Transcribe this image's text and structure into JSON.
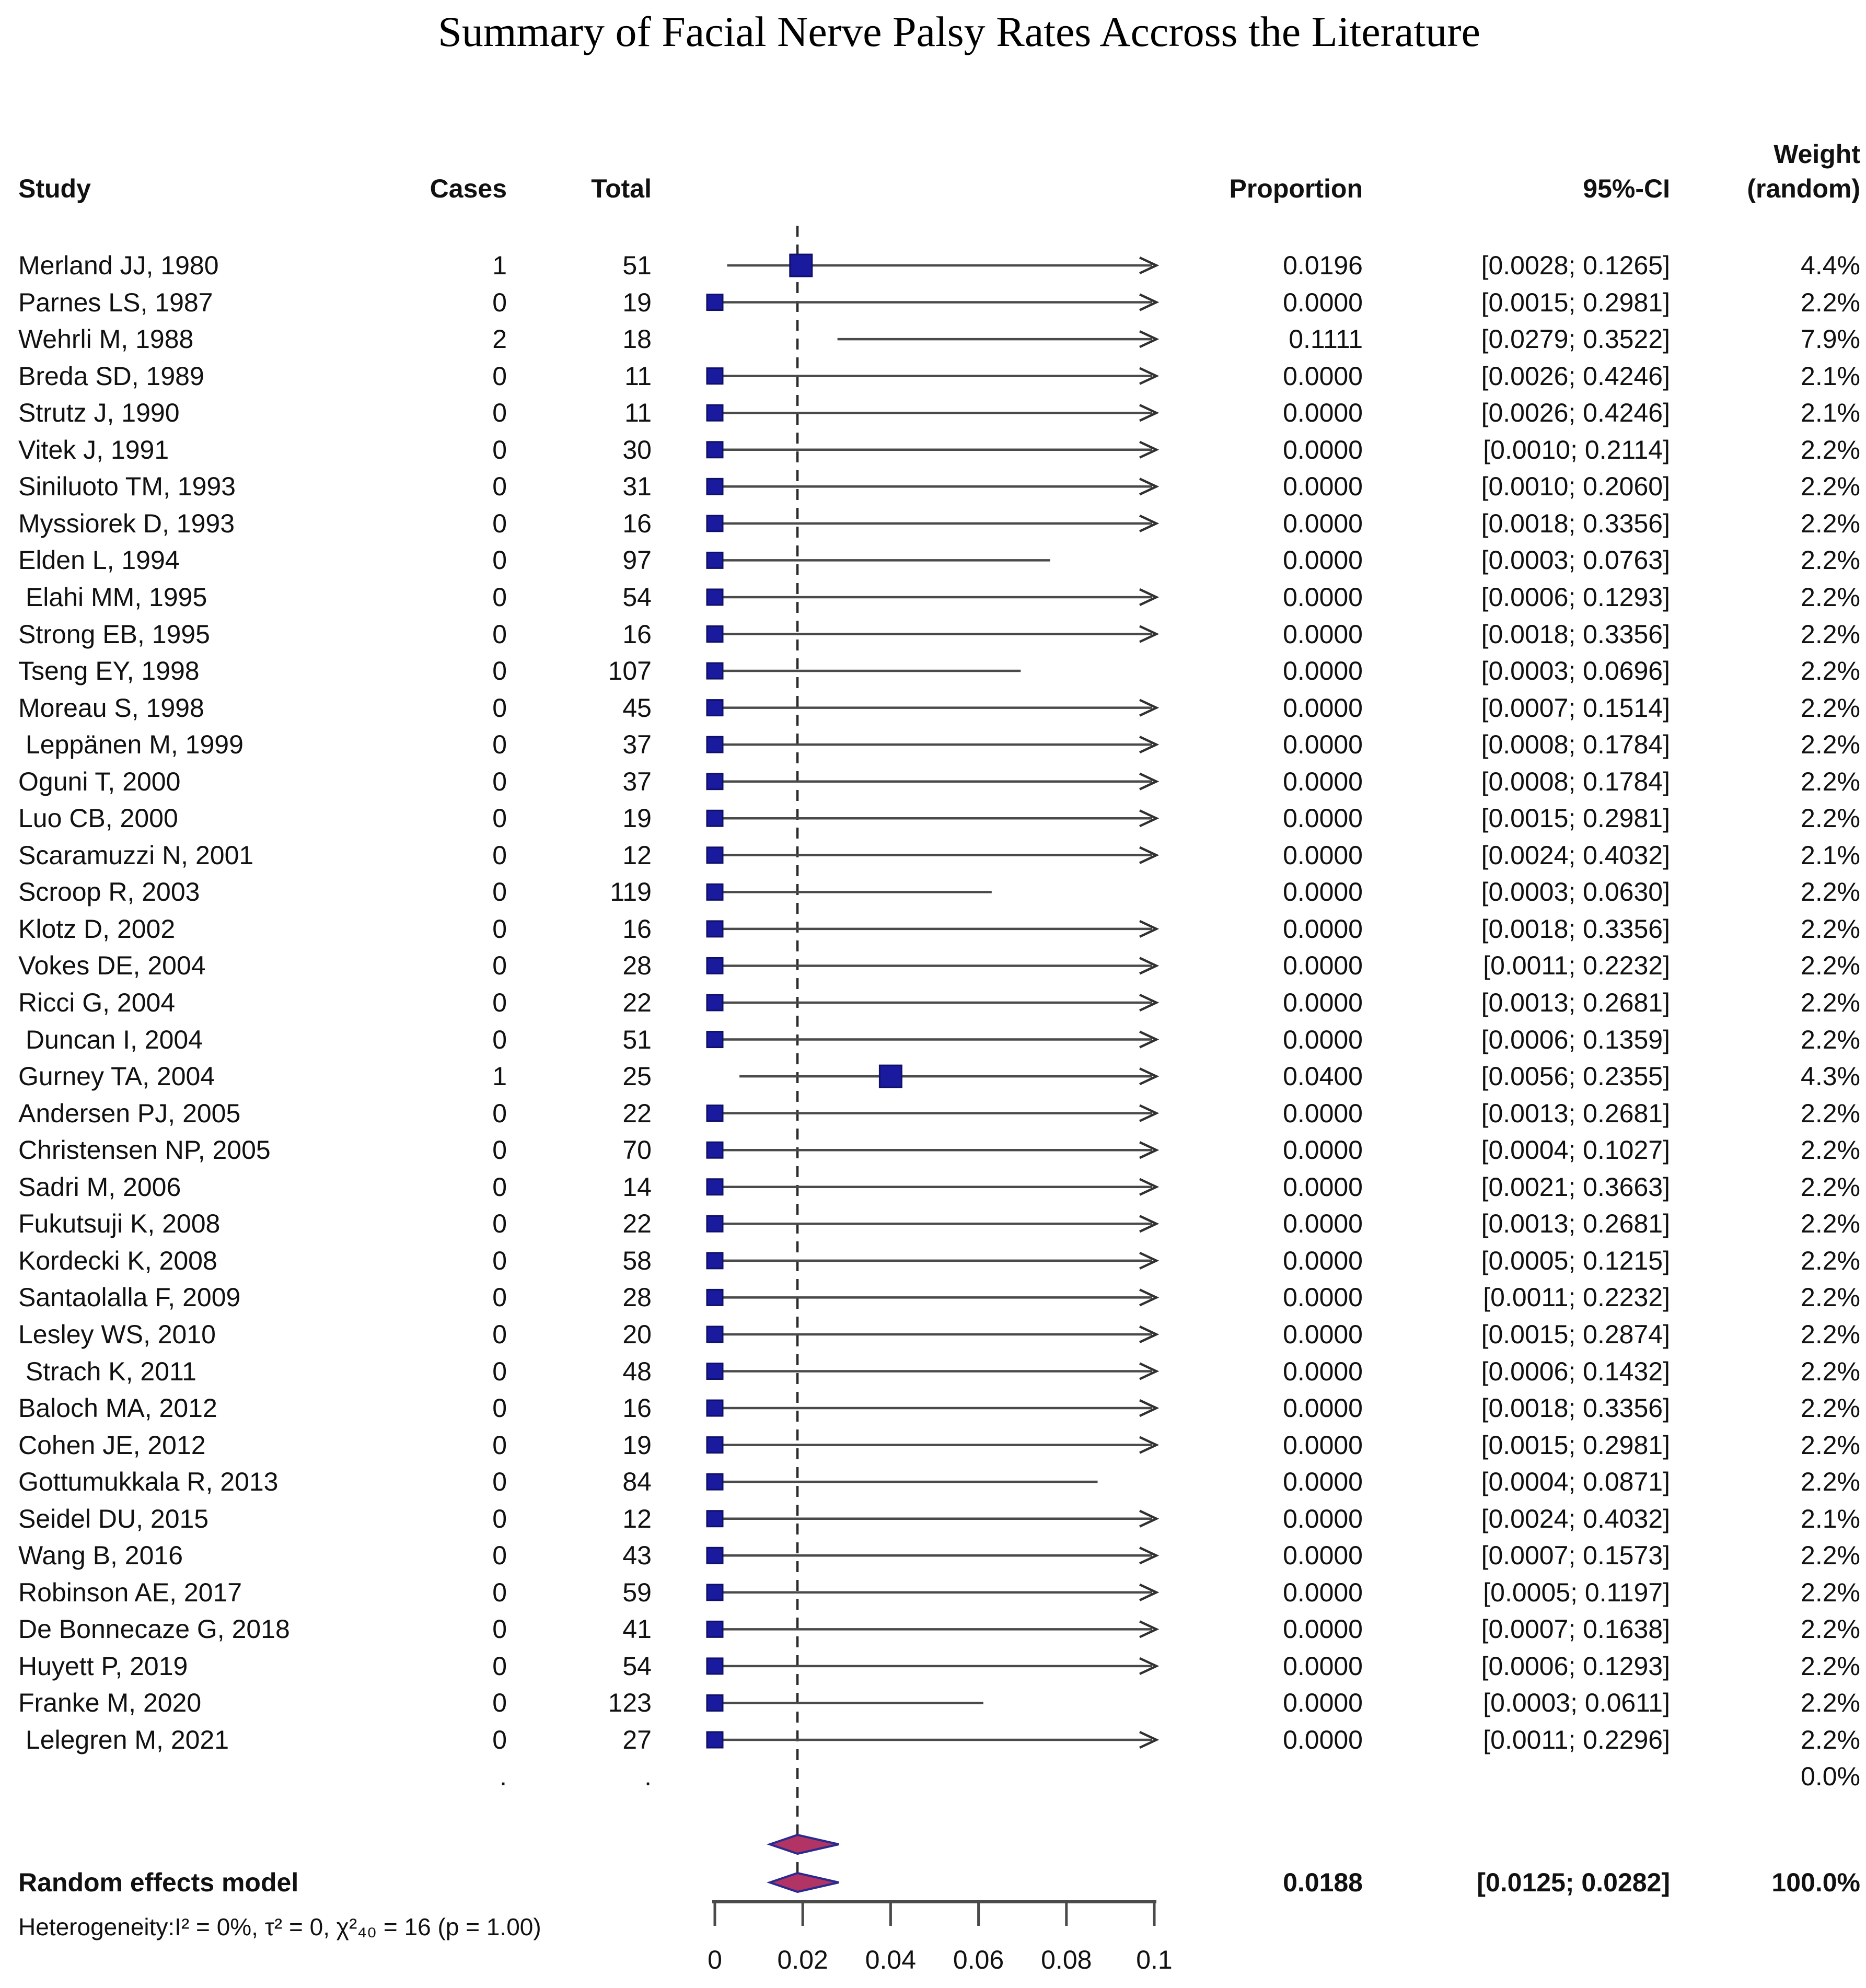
{
  "title": "Summary of Facial Nerve Palsy Rates Accross the Literature",
  "header": {
    "study": "Study",
    "cases": "Cases",
    "total": "Total",
    "proportion": "Proportion",
    "ci": "95%-CI",
    "weight_top": "Weight",
    "weight_bottom": "(random)"
  },
  "gap_row": {
    "cases_dot": ".",
    "total_dot": ".",
    "weight": "0.0%"
  },
  "summary_row": {
    "label": "Random effects model",
    "proportion": "0.0188",
    "ci": "[0.0125; 0.0282]",
    "weight": "100.0%"
  },
  "heterogeneity": "Heterogeneity:I² = 0%, τ² = 0, χ²₄₀ = 16 (p = 1.00)",
  "colors": {
    "square_fill": "#1a1a9e",
    "square_stroke": "#10106b",
    "diamond_fill": "#b13464",
    "diamond_stroke": "#2a2a90",
    "ci_line": "#4a4a4a",
    "arrow": "#303030",
    "dashed_line": "#2b2b2b",
    "axis": "#4a4a4a",
    "text": "#111111"
  },
  "chart_data": {
    "type": "forest",
    "title": "Summary of Facial Nerve Palsy Rates Accross the Literature",
    "xlabel": "Proportion",
    "xlim": [
      0,
      0.1
    ],
    "x_ticks": [
      0,
      0.02,
      0.04,
      0.06,
      0.08,
      0.1
    ],
    "x_tick_labels": [
      "0",
      "0.02",
      "0.04",
      "0.06",
      "0.08",
      "0.1"
    ],
    "dashed_at": 0.0188,
    "legend_position": "none",
    "grid": false,
    "studies": [
      {
        "study": "Merland JJ, 1980",
        "cases": "1",
        "total": "51",
        "proportion": "0.0196",
        "ci": "[0.0028; 0.1265]",
        "weight": "4.4%",
        "p": 0.0196,
        "lo": 0.0028,
        "hi": 0.1265
      },
      {
        "study": "Parnes LS, 1987",
        "cases": "0",
        "total": "19",
        "proportion": "0.0000",
        "ci": "[0.0015; 0.2981]",
        "weight": "2.2%",
        "p": 0.0,
        "lo": 0.0015,
        "hi": 0.2981
      },
      {
        "study": "Wehrli M, 1988",
        "cases": "2",
        "total": "18",
        "proportion": "0.1111",
        "ci": "[0.0279; 0.3522]",
        "weight": "7.9%",
        "p": 0.1111,
        "lo": 0.0279,
        "hi": 0.3522
      },
      {
        "study": "Breda SD, 1989",
        "cases": "0",
        "total": "11",
        "proportion": "0.0000",
        "ci": "[0.0026; 0.4246]",
        "weight": "2.1%",
        "p": 0.0,
        "lo": 0.0026,
        "hi": 0.4246
      },
      {
        "study": "Strutz J, 1990",
        "cases": "0",
        "total": "11",
        "proportion": "0.0000",
        "ci": "[0.0026; 0.4246]",
        "weight": "2.1%",
        "p": 0.0,
        "lo": 0.0026,
        "hi": 0.4246
      },
      {
        "study": "Vitek J, 1991",
        "cases": "0",
        "total": "30",
        "proportion": "0.0000",
        "ci": "[0.0010; 0.2114]",
        "weight": "2.2%",
        "p": 0.0,
        "lo": 0.001,
        "hi": 0.2114
      },
      {
        "study": "Siniluoto TM, 1993",
        "cases": "0",
        "total": "31",
        "proportion": "0.0000",
        "ci": "[0.0010; 0.2060]",
        "weight": "2.2%",
        "p": 0.0,
        "lo": 0.001,
        "hi": 0.206
      },
      {
        "study": "Myssiorek D, 1993",
        "cases": "0",
        "total": "16",
        "proportion": "0.0000",
        "ci": "[0.0018; 0.3356]",
        "weight": "2.2%",
        "p": 0.0,
        "lo": 0.0018,
        "hi": 0.3356
      },
      {
        "study": "Elden L, 1994",
        "cases": "0",
        "total": "97",
        "proportion": "0.0000",
        "ci": "[0.0003; 0.0763]",
        "weight": "2.2%",
        "p": 0.0,
        "lo": 0.0003,
        "hi": 0.0763
      },
      {
        "study": " Elahi MM, 1995",
        "cases": "0",
        "total": "54",
        "proportion": "0.0000",
        "ci": "[0.0006; 0.1293]",
        "weight": "2.2%",
        "p": 0.0,
        "lo": 0.0006,
        "hi": 0.1293
      },
      {
        "study": "Strong EB, 1995",
        "cases": "0",
        "total": "16",
        "proportion": "0.0000",
        "ci": "[0.0018; 0.3356]",
        "weight": "2.2%",
        "p": 0.0,
        "lo": 0.0018,
        "hi": 0.3356
      },
      {
        "study": "Tseng EY, 1998",
        "cases": "0",
        "total": "107",
        "proportion": "0.0000",
        "ci": "[0.0003; 0.0696]",
        "weight": "2.2%",
        "p": 0.0,
        "lo": 0.0003,
        "hi": 0.0696
      },
      {
        "study": "Moreau S, 1998",
        "cases": "0",
        "total": "45",
        "proportion": "0.0000",
        "ci": "[0.0007; 0.1514]",
        "weight": "2.2%",
        "p": 0.0,
        "lo": 0.0007,
        "hi": 0.1514
      },
      {
        "study": " Leppänen M, 1999",
        "cases": "0",
        "total": "37",
        "proportion": "0.0000",
        "ci": "[0.0008; 0.1784]",
        "weight": "2.2%",
        "p": 0.0,
        "lo": 0.0008,
        "hi": 0.1784
      },
      {
        "study": "Oguni T, 2000",
        "cases": "0",
        "total": "37",
        "proportion": "0.0000",
        "ci": "[0.0008; 0.1784]",
        "weight": "2.2%",
        "p": 0.0,
        "lo": 0.0008,
        "hi": 0.1784
      },
      {
        "study": "Luo CB, 2000",
        "cases": "0",
        "total": "19",
        "proportion": "0.0000",
        "ci": "[0.0015; 0.2981]",
        "weight": "2.2%",
        "p": 0.0,
        "lo": 0.0015,
        "hi": 0.2981
      },
      {
        "study": "Scaramuzzi N, 2001",
        "cases": "0",
        "total": "12",
        "proportion": "0.0000",
        "ci": "[0.0024; 0.4032]",
        "weight": "2.1%",
        "p": 0.0,
        "lo": 0.0024,
        "hi": 0.4032
      },
      {
        "study": "Scroop R, 2003",
        "cases": "0",
        "total": "119",
        "proportion": "0.0000",
        "ci": "[0.0003; 0.0630]",
        "weight": "2.2%",
        "p": 0.0,
        "lo": 0.0003,
        "hi": 0.063
      },
      {
        "study": "Klotz D, 2002",
        "cases": "0",
        "total": "16",
        "proportion": "0.0000",
        "ci": "[0.0018; 0.3356]",
        "weight": "2.2%",
        "p": 0.0,
        "lo": 0.0018,
        "hi": 0.3356
      },
      {
        "study": "Vokes DE, 2004",
        "cases": "0",
        "total": "28",
        "proportion": "0.0000",
        "ci": "[0.0011; 0.2232]",
        "weight": "2.2%",
        "p": 0.0,
        "lo": 0.0011,
        "hi": 0.2232
      },
      {
        "study": "Ricci G, 2004",
        "cases": "0",
        "total": "22",
        "proportion": "0.0000",
        "ci": "[0.0013; 0.2681]",
        "weight": "2.2%",
        "p": 0.0,
        "lo": 0.0013,
        "hi": 0.2681
      },
      {
        "study": " Duncan I, 2004",
        "cases": "0",
        "total": "51",
        "proportion": "0.0000",
        "ci": "[0.0006; 0.1359]",
        "weight": "2.2%",
        "p": 0.0,
        "lo": 0.0006,
        "hi": 0.1359
      },
      {
        "study": "Gurney TA, 2004",
        "cases": "1",
        "total": "25",
        "proportion": "0.0400",
        "ci": "[0.0056; 0.2355]",
        "weight": "4.3%",
        "p": 0.04,
        "lo": 0.0056,
        "hi": 0.2355
      },
      {
        "study": "Andersen PJ, 2005",
        "cases": "0",
        "total": "22",
        "proportion": "0.0000",
        "ci": "[0.0013; 0.2681]",
        "weight": "2.2%",
        "p": 0.0,
        "lo": 0.0013,
        "hi": 0.2681
      },
      {
        "study": "Christensen NP, 2005",
        "cases": "0",
        "total": "70",
        "proportion": "0.0000",
        "ci": "[0.0004; 0.1027]",
        "weight": "2.2%",
        "p": 0.0,
        "lo": 0.0004,
        "hi": 0.1027
      },
      {
        "study": "Sadri M, 2006",
        "cases": "0",
        "total": "14",
        "proportion": "0.0000",
        "ci": "[0.0021; 0.3663]",
        "weight": "2.2%",
        "p": 0.0,
        "lo": 0.0021,
        "hi": 0.3663
      },
      {
        "study": "Fukutsuji K, 2008",
        "cases": "0",
        "total": "22",
        "proportion": "0.0000",
        "ci": "[0.0013; 0.2681]",
        "weight": "2.2%",
        "p": 0.0,
        "lo": 0.0013,
        "hi": 0.2681
      },
      {
        "study": "Kordecki K, 2008",
        "cases": "0",
        "total": "58",
        "proportion": "0.0000",
        "ci": "[0.0005; 0.1215]",
        "weight": "2.2%",
        "p": 0.0,
        "lo": 0.0005,
        "hi": 0.1215
      },
      {
        "study": "Santaolalla F, 2009",
        "cases": "0",
        "total": "28",
        "proportion": "0.0000",
        "ci": "[0.0011; 0.2232]",
        "weight": "2.2%",
        "p": 0.0,
        "lo": 0.0011,
        "hi": 0.2232
      },
      {
        "study": "Lesley WS, 2010",
        "cases": "0",
        "total": "20",
        "proportion": "0.0000",
        "ci": "[0.0015; 0.2874]",
        "weight": "2.2%",
        "p": 0.0,
        "lo": 0.0015,
        "hi": 0.2874
      },
      {
        "study": " Strach K, 2011",
        "cases": "0",
        "total": "48",
        "proportion": "0.0000",
        "ci": "[0.0006; 0.1432]",
        "weight": "2.2%",
        "p": 0.0,
        "lo": 0.0006,
        "hi": 0.1432
      },
      {
        "study": "Baloch MA, 2012",
        "cases": "0",
        "total": "16",
        "proportion": "0.0000",
        "ci": "[0.0018; 0.3356]",
        "weight": "2.2%",
        "p": 0.0,
        "lo": 0.0018,
        "hi": 0.3356
      },
      {
        "study": "Cohen JE, 2012",
        "cases": "0",
        "total": "19",
        "proportion": "0.0000",
        "ci": "[0.0015; 0.2981]",
        "weight": "2.2%",
        "p": 0.0,
        "lo": 0.0015,
        "hi": 0.2981
      },
      {
        "study": "Gottumukkala R, 2013",
        "cases": "0",
        "total": "84",
        "proportion": "0.0000",
        "ci": "[0.0004; 0.0871]",
        "weight": "2.2%",
        "p": 0.0,
        "lo": 0.0004,
        "hi": 0.0871
      },
      {
        "study": "Seidel DU, 2015",
        "cases": "0",
        "total": "12",
        "proportion": "0.0000",
        "ci": "[0.0024; 0.4032]",
        "weight": "2.1%",
        "p": 0.0,
        "lo": 0.0024,
        "hi": 0.4032
      },
      {
        "study": "Wang B, 2016",
        "cases": "0",
        "total": "43",
        "proportion": "0.0000",
        "ci": "[0.0007; 0.1573]",
        "weight": "2.2%",
        "p": 0.0,
        "lo": 0.0007,
        "hi": 0.1573
      },
      {
        "study": "Robinson AE, 2017",
        "cases": "0",
        "total": "59",
        "proportion": "0.0000",
        "ci": "[0.0005; 0.1197]",
        "weight": "2.2%",
        "p": 0.0,
        "lo": 0.0005,
        "hi": 0.1197
      },
      {
        "study": "De Bonnecaze G, 2018",
        "cases": "0",
        "total": "41",
        "proportion": "0.0000",
        "ci": "[0.0007; 0.1638]",
        "weight": "2.2%",
        "p": 0.0,
        "lo": 0.0007,
        "hi": 0.1638
      },
      {
        "study": "Huyett P, 2019",
        "cases": "0",
        "total": "54",
        "proportion": "0.0000",
        "ci": "[0.0006; 0.1293]",
        "weight": "2.2%",
        "p": 0.0,
        "lo": 0.0006,
        "hi": 0.1293
      },
      {
        "study": "Franke M, 2020",
        "cases": "0",
        "total": "123",
        "proportion": "0.0000",
        "ci": "[0.0003; 0.0611]",
        "weight": "2.2%",
        "p": 0.0,
        "lo": 0.0003,
        "hi": 0.0611
      },
      {
        "study": " Lelegren M, 2021",
        "cases": "0",
        "total": "27",
        "proportion": "0.0000",
        "ci": "[0.0011; 0.2296]",
        "weight": "2.2%",
        "p": 0.0,
        "lo": 0.0011,
        "hi": 0.2296
      }
    ],
    "summary": {
      "label": "Random effects model",
      "proportion": 0.0188,
      "ci_low": 0.0125,
      "ci_high": 0.0282,
      "weight": "100.0%"
    },
    "diamonds": [
      {
        "center": 0.0188,
        "low": 0.0125,
        "high": 0.0282
      },
      {
        "center": 0.0188,
        "low": 0.0125,
        "high": 0.0282
      }
    ]
  }
}
